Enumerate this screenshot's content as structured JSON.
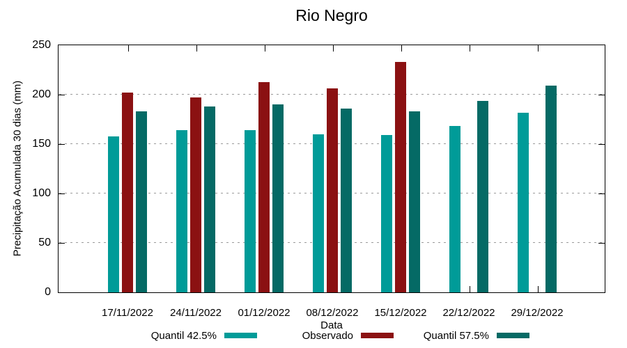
{
  "chart_data": {
    "type": "bar",
    "title": "Rio Negro",
    "xlabel": "Data",
    "ylabel": "Precipitação Acumulada 30 dias (mm)",
    "ylim": [
      0,
      250
    ],
    "yticks": [
      0,
      50,
      100,
      150,
      200,
      250
    ],
    "grid": "horizontal-dotted",
    "grid_color": "#9a9a9a",
    "legend_position": "bottom",
    "categories": [
      "17/11/2022",
      "24/11/2022",
      "01/12/2022",
      "08/12/2022",
      "15/12/2022",
      "22/12/2022",
      "29/12/2022"
    ],
    "series": [
      {
        "name": "Quantil 42.5%",
        "color": "#009B98",
        "values": [
          158,
          164,
          164,
          160,
          159,
          168,
          182
        ]
      },
      {
        "name": "Observado",
        "color": "#8B1112",
        "values": [
          202,
          197,
          213,
          206,
          233,
          null,
          null
        ]
      },
      {
        "name": "Quantil 57.5%",
        "color": "#056A65",
        "values": [
          183,
          188,
          190,
          186,
          183,
          194,
          209
        ]
      }
    ]
  }
}
